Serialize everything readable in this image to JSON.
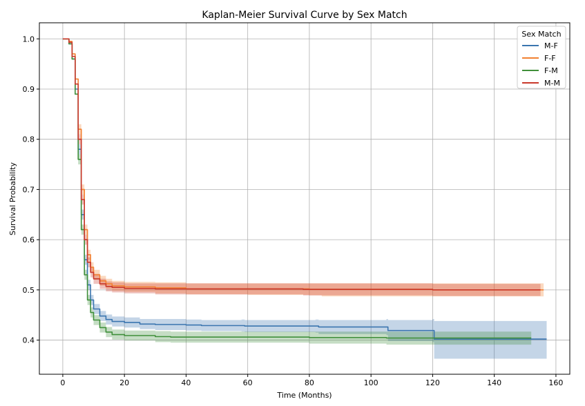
{
  "chart_data": {
    "type": "line",
    "title": "Kaplan-Meier Survival Curve by Sex Match",
    "xlabel": "Time (Months)",
    "ylabel": "Survival Probability",
    "xlim": [
      -7.6,
      164.5
    ],
    "ylim": [
      0.332,
      1.032
    ],
    "xticks": [
      0,
      20,
      40,
      60,
      80,
      100,
      120,
      140,
      160
    ],
    "yticks": [
      0.4,
      0.5,
      0.6,
      0.7,
      0.8,
      0.9,
      1.0
    ],
    "xtick_labels": [
      "0",
      "20",
      "40",
      "60",
      "80",
      "100",
      "120",
      "140",
      "160"
    ],
    "ytick_labels": [
      "0.4",
      "0.5",
      "0.6",
      "0.7",
      "0.8",
      "0.9",
      "1.0"
    ],
    "grid": true,
    "legend": {
      "title": "Sex Match",
      "position": "top-right"
    },
    "series": [
      {
        "name": "M-F",
        "color": "#3a75af",
        "values": [
          [
            0,
            1.0
          ],
          [
            1,
            1.0
          ],
          [
            2,
            0.99
          ],
          [
            3,
            0.96
          ],
          [
            4,
            0.9
          ],
          [
            5,
            0.78
          ],
          [
            6,
            0.65
          ],
          [
            7,
            0.56
          ],
          [
            8,
            0.51
          ],
          [
            9,
            0.48
          ],
          [
            10,
            0.462
          ],
          [
            12,
            0.448
          ],
          [
            14,
            0.441
          ],
          [
            16,
            0.437
          ],
          [
            20,
            0.435
          ],
          [
            25,
            0.432
          ],
          [
            30,
            0.431
          ],
          [
            40,
            0.43
          ],
          [
            45,
            0.429
          ],
          [
            58,
            0.429
          ],
          [
            59,
            0.428
          ],
          [
            82,
            0.428
          ],
          [
            83,
            0.426
          ],
          [
            105,
            0.426
          ],
          [
            105.5,
            0.419
          ],
          [
            120,
            0.419
          ],
          [
            120.5,
            0.402
          ],
          [
            157,
            0.402
          ]
        ],
        "lower": [
          [
            0,
            1.0
          ],
          [
            1,
            1.0
          ],
          [
            2,
            0.99
          ],
          [
            3,
            0.96
          ],
          [
            4,
            0.9
          ],
          [
            5,
            0.77
          ],
          [
            6,
            0.64
          ],
          [
            7,
            0.55
          ],
          [
            8,
            0.5
          ],
          [
            9,
            0.47
          ],
          [
            10,
            0.452
          ],
          [
            12,
            0.438
          ],
          [
            14,
            0.431
          ],
          [
            16,
            0.427
          ],
          [
            20,
            0.425
          ],
          [
            25,
            0.422
          ],
          [
            30,
            0.42
          ],
          [
            40,
            0.419
          ],
          [
            45,
            0.418
          ],
          [
            58,
            0.417
          ],
          [
            59,
            0.416
          ],
          [
            82,
            0.415
          ],
          [
            83,
            0.412
          ],
          [
            105,
            0.41
          ],
          [
            105.5,
            0.398
          ],
          [
            120,
            0.396
          ],
          [
            120.5,
            0.363
          ],
          [
            157,
            0.363
          ]
        ],
        "upper": [
          [
            0,
            1.0
          ],
          [
            1,
            1.0
          ],
          [
            2,
            0.99
          ],
          [
            3,
            0.96
          ],
          [
            4,
            0.9
          ],
          [
            5,
            0.79
          ],
          [
            6,
            0.66
          ],
          [
            7,
            0.57
          ],
          [
            8,
            0.52
          ],
          [
            9,
            0.49
          ],
          [
            10,
            0.472
          ],
          [
            12,
            0.458
          ],
          [
            14,
            0.451
          ],
          [
            16,
            0.447
          ],
          [
            20,
            0.445
          ],
          [
            25,
            0.442
          ],
          [
            30,
            0.442
          ],
          [
            40,
            0.441
          ],
          [
            45,
            0.44
          ],
          [
            58,
            0.441
          ],
          [
            59,
            0.44
          ],
          [
            82,
            0.441
          ],
          [
            83,
            0.44
          ],
          [
            105,
            0.442
          ],
          [
            105.5,
            0.44
          ],
          [
            120,
            0.442
          ],
          [
            120.5,
            0.438
          ],
          [
            157,
            0.438
          ]
        ]
      },
      {
        "name": "F-F",
        "color": "#f28030",
        "values": [
          [
            0,
            1.0
          ],
          [
            1,
            1.0
          ],
          [
            2,
            0.995
          ],
          [
            3,
            0.97
          ],
          [
            4,
            0.92
          ],
          [
            5,
            0.82
          ],
          [
            6,
            0.7
          ],
          [
            7,
            0.62
          ],
          [
            8,
            0.57
          ],
          [
            9,
            0.545
          ],
          [
            10,
            0.53
          ],
          [
            12,
            0.518
          ],
          [
            14,
            0.512
          ],
          [
            16,
            0.508
          ],
          [
            20,
            0.506
          ],
          [
            30,
            0.504
          ],
          [
            40,
            0.502
          ],
          [
            60,
            0.502
          ],
          [
            80,
            0.501
          ],
          [
            120,
            0.5
          ],
          [
            156,
            0.5
          ]
        ],
        "lower": [
          [
            0,
            1.0
          ],
          [
            1,
            1.0
          ],
          [
            2,
            0.995
          ],
          [
            3,
            0.97
          ],
          [
            4,
            0.92
          ],
          [
            5,
            0.81
          ],
          [
            6,
            0.69
          ],
          [
            7,
            0.61
          ],
          [
            8,
            0.56
          ],
          [
            9,
            0.535
          ],
          [
            10,
            0.52
          ],
          [
            12,
            0.508
          ],
          [
            14,
            0.502
          ],
          [
            16,
            0.498
          ],
          [
            20,
            0.496
          ],
          [
            30,
            0.493
          ],
          [
            40,
            0.491
          ],
          [
            60,
            0.49
          ],
          [
            80,
            0.489
          ],
          [
            84,
            0.487
          ],
          [
            120,
            0.487
          ],
          [
            156,
            0.487
          ]
        ],
        "upper": [
          [
            0,
            1.0
          ],
          [
            1,
            1.0
          ],
          [
            2,
            0.995
          ],
          [
            3,
            0.97
          ],
          [
            4,
            0.92
          ],
          [
            5,
            0.83
          ],
          [
            6,
            0.71
          ],
          [
            7,
            0.63
          ],
          [
            8,
            0.58
          ],
          [
            9,
            0.555
          ],
          [
            10,
            0.54
          ],
          [
            12,
            0.528
          ],
          [
            14,
            0.522
          ],
          [
            16,
            0.518
          ],
          [
            20,
            0.516
          ],
          [
            30,
            0.515
          ],
          [
            40,
            0.513
          ],
          [
            60,
            0.513
          ],
          [
            80,
            0.513
          ],
          [
            84,
            0.513
          ],
          [
            120,
            0.513
          ],
          [
            156,
            0.513
          ]
        ]
      },
      {
        "name": "F-M",
        "color": "#3f8f3a",
        "values": [
          [
            0,
            1.0
          ],
          [
            1,
            1.0
          ],
          [
            2,
            0.99
          ],
          [
            3,
            0.96
          ],
          [
            4,
            0.89
          ],
          [
            5,
            0.76
          ],
          [
            6,
            0.62
          ],
          [
            7,
            0.53
          ],
          [
            8,
            0.48
          ],
          [
            9,
            0.455
          ],
          [
            10,
            0.44
          ],
          [
            12,
            0.425
          ],
          [
            14,
            0.416
          ],
          [
            16,
            0.411
          ],
          [
            20,
            0.409
          ],
          [
            30,
            0.407
          ],
          [
            35,
            0.406
          ],
          [
            80,
            0.405
          ],
          [
            105,
            0.404
          ],
          [
            152,
            0.404
          ]
        ],
        "lower": [
          [
            0,
            1.0
          ],
          [
            1,
            1.0
          ],
          [
            2,
            0.99
          ],
          [
            3,
            0.96
          ],
          [
            4,
            0.89
          ],
          [
            5,
            0.75
          ],
          [
            6,
            0.61
          ],
          [
            7,
            0.52
          ],
          [
            8,
            0.47
          ],
          [
            9,
            0.445
          ],
          [
            10,
            0.43
          ],
          [
            12,
            0.415
          ],
          [
            14,
            0.406
          ],
          [
            16,
            0.401
          ],
          [
            20,
            0.399
          ],
          [
            30,
            0.396
          ],
          [
            35,
            0.395
          ],
          [
            80,
            0.393
          ],
          [
            105,
            0.391
          ],
          [
            152,
            0.391
          ]
        ],
        "upper": [
          [
            0,
            1.0
          ],
          [
            1,
            1.0
          ],
          [
            2,
            0.99
          ],
          [
            3,
            0.96
          ],
          [
            4,
            0.89
          ],
          [
            5,
            0.77
          ],
          [
            6,
            0.63
          ],
          [
            7,
            0.54
          ],
          [
            8,
            0.49
          ],
          [
            9,
            0.465
          ],
          [
            10,
            0.45
          ],
          [
            12,
            0.435
          ],
          [
            14,
            0.426
          ],
          [
            16,
            0.421
          ],
          [
            20,
            0.419
          ],
          [
            30,
            0.418
          ],
          [
            35,
            0.417
          ],
          [
            80,
            0.417
          ],
          [
            105,
            0.417
          ],
          [
            152,
            0.417
          ]
        ]
      },
      {
        "name": "M-M",
        "color": "#c9382a",
        "values": [
          [
            0,
            1.0
          ],
          [
            1,
            1.0
          ],
          [
            2,
            0.993
          ],
          [
            3,
            0.965
          ],
          [
            4,
            0.91
          ],
          [
            5,
            0.8
          ],
          [
            6,
            0.68
          ],
          [
            7,
            0.6
          ],
          [
            8,
            0.555
          ],
          [
            9,
            0.535
          ],
          [
            10,
            0.522
          ],
          [
            12,
            0.512
          ],
          [
            14,
            0.507
          ],
          [
            16,
            0.505
          ],
          [
            20,
            0.503
          ],
          [
            30,
            0.502
          ],
          [
            40,
            0.502
          ],
          [
            78,
            0.501
          ],
          [
            120,
            0.5
          ],
          [
            155,
            0.5
          ]
        ],
        "lower": [
          [
            0,
            1.0
          ],
          [
            1,
            1.0
          ],
          [
            2,
            0.993
          ],
          [
            3,
            0.965
          ],
          [
            4,
            0.91
          ],
          [
            5,
            0.79
          ],
          [
            6,
            0.67
          ],
          [
            7,
            0.59
          ],
          [
            8,
            0.545
          ],
          [
            9,
            0.525
          ],
          [
            10,
            0.512
          ],
          [
            12,
            0.502
          ],
          [
            14,
            0.497
          ],
          [
            16,
            0.495
          ],
          [
            20,
            0.493
          ],
          [
            30,
            0.491
          ],
          [
            40,
            0.491
          ],
          [
            78,
            0.489
          ],
          [
            120,
            0.488
          ],
          [
            155,
            0.488
          ]
        ],
        "upper": [
          [
            0,
            1.0
          ],
          [
            1,
            1.0
          ],
          [
            2,
            0.993
          ],
          [
            3,
            0.965
          ],
          [
            4,
            0.91
          ],
          [
            5,
            0.81
          ],
          [
            6,
            0.69
          ],
          [
            7,
            0.61
          ],
          [
            8,
            0.565
          ],
          [
            9,
            0.545
          ],
          [
            10,
            0.532
          ],
          [
            12,
            0.522
          ],
          [
            14,
            0.517
          ],
          [
            16,
            0.515
          ],
          [
            20,
            0.513
          ],
          [
            30,
            0.513
          ],
          [
            40,
            0.513
          ],
          [
            78,
            0.513
          ],
          [
            120,
            0.512
          ],
          [
            155,
            0.512
          ]
        ]
      }
    ]
  }
}
